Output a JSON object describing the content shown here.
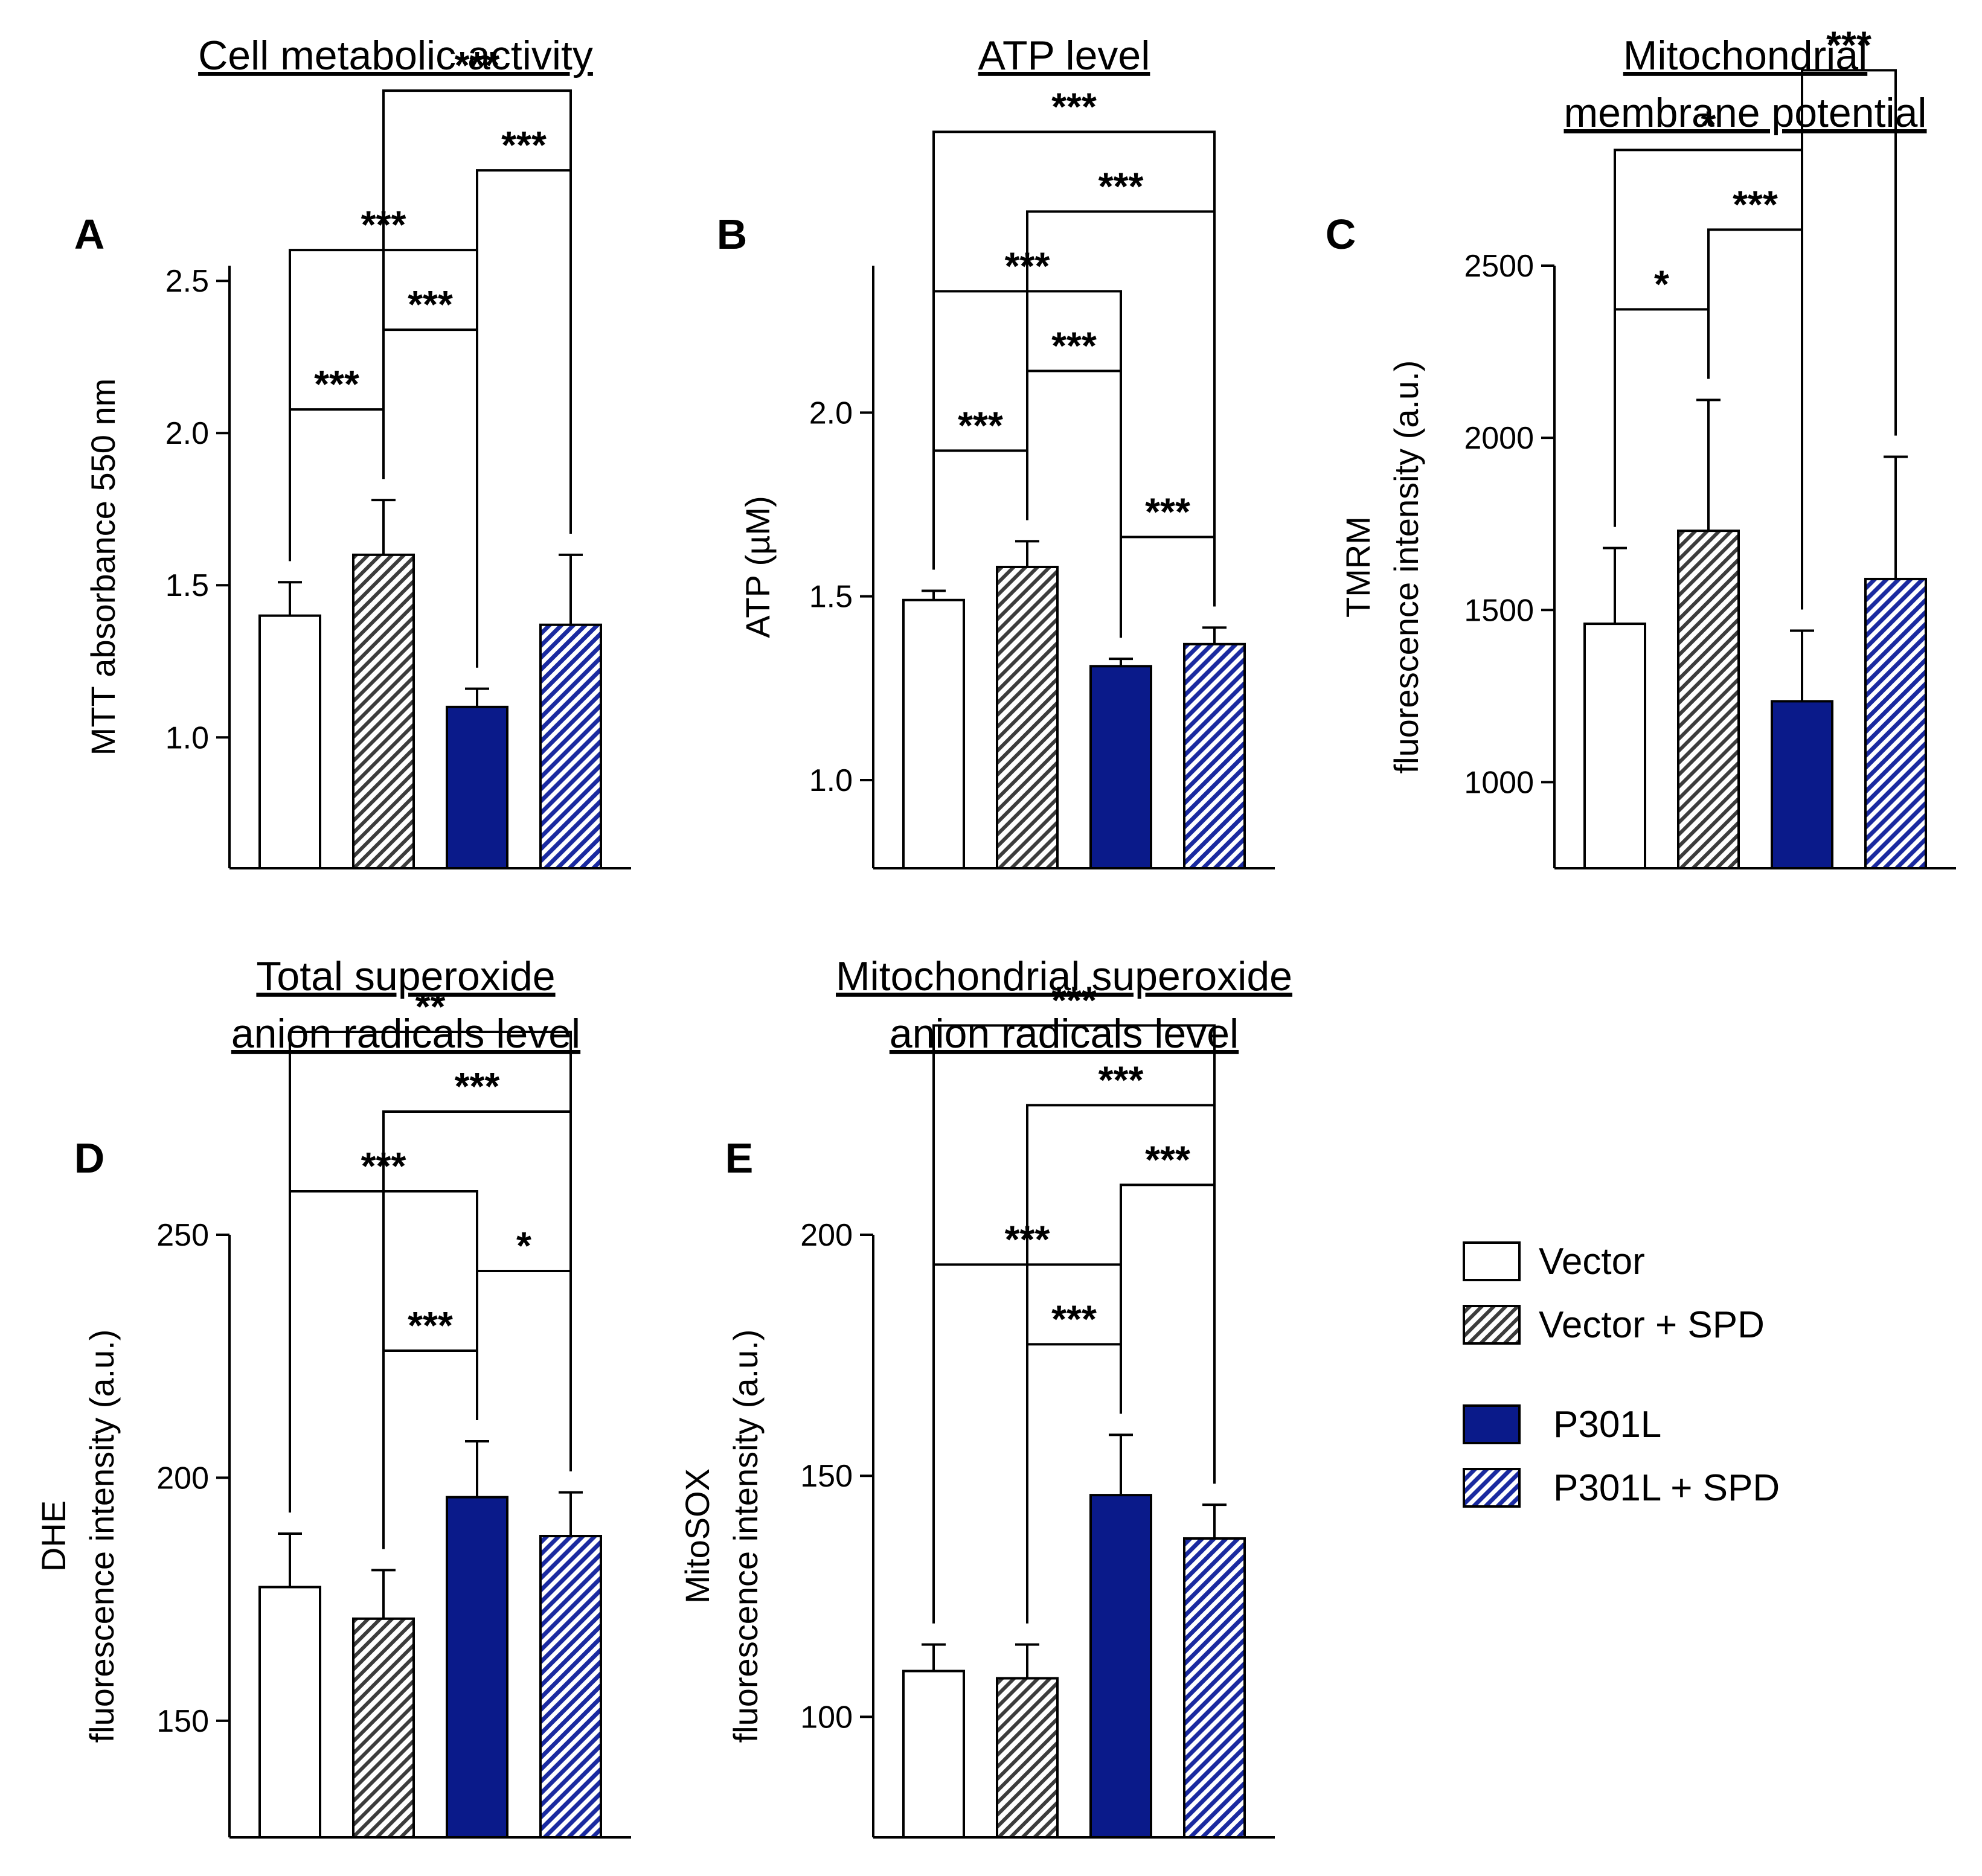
{
  "colors": {
    "vector": "#ffffff",
    "vector_spd": "#c8c8c8",
    "p301l": "#0a1a8a",
    "p301l_spd": "#3a4ab8",
    "ink": "#000000"
  },
  "legend": {
    "items": [
      {
        "label": "Vector",
        "style": "vector"
      },
      {
        "label": "Vector + SPD",
        "style": "vector_spd"
      },
      {
        "label": "P301L",
        "style": "p301l"
      },
      {
        "label": "P301L + SPD",
        "style": "p301l_spd"
      }
    ]
  },
  "chart_data": [
    {
      "type": "bar",
      "panel": "A",
      "title": [
        "Cell metabolic activity"
      ],
      "ylabel": [
        "MTT absorbance 550 nm"
      ],
      "categories": [
        "Vector",
        "Vector + SPD",
        "P301L",
        "P301L + SPD"
      ],
      "values": [
        1.4,
        1.6,
        1.1,
        1.37
      ],
      "errors": [
        0.11,
        0.18,
        0.06,
        0.23
      ],
      "ylim": [
        0.57,
        2.55
      ],
      "ticks": [
        1.0,
        1.5,
        2.0,
        2.5
      ],
      "tick_labels": [
        "1.0",
        "1.5",
        "2.0",
        "2.5"
      ],
      "significance": [
        {
          "a": 0,
          "b": 1,
          "label": "***"
        },
        {
          "a": 1,
          "b": 2,
          "label": "***"
        },
        {
          "a": 0,
          "b": 2,
          "label": "***"
        },
        {
          "a": 2,
          "b": 3,
          "label": "***"
        },
        {
          "a": 1,
          "b": 3,
          "label": "***"
        }
      ]
    },
    {
      "type": "bar",
      "panel": "B",
      "title": [
        "ATP level"
      ],
      "ylabel": [
        "ATP (µM)"
      ],
      "categories": [
        "Vector",
        "Vector + SPD",
        "P301L",
        "P301L + SPD"
      ],
      "values": [
        1.49,
        1.58,
        1.31,
        1.37
      ],
      "errors": [
        0.025,
        0.07,
        0.02,
        0.045
      ],
      "ylim": [
        0.76,
        2.4
      ],
      "ticks": [
        1.0,
        1.5,
        2.0
      ],
      "tick_labels": [
        "1.0",
        "1.5",
        "2.0"
      ],
      "significance": [
        {
          "a": 0,
          "b": 1,
          "label": "***"
        },
        {
          "a": 2,
          "b": 3,
          "label": "***"
        },
        {
          "a": 1,
          "b": 2,
          "label": "***"
        },
        {
          "a": 0,
          "b": 2,
          "label": "***"
        },
        {
          "a": 1,
          "b": 3,
          "label": "***"
        },
        {
          "a": 0,
          "b": 3,
          "label": "***"
        }
      ]
    },
    {
      "type": "bar",
      "panel": "C",
      "title": [
        "Mitochondrial",
        "membrane potential"
      ],
      "ylabel": [
        "TMRM",
        "fluorescence intensity (a.u.)"
      ],
      "categories": [
        "Vector",
        "Vector + SPD",
        "P301L",
        "P301L + SPD"
      ],
      "values": [
        1460,
        1730,
        1235,
        1590
      ],
      "errors": [
        220,
        380,
        205,
        355
      ],
      "ylim": [
        750,
        2500
      ],
      "ticks": [
        1000,
        1500,
        2000,
        2500
      ],
      "tick_labels": [
        "1000",
        "1500",
        "2000",
        "2500"
      ],
      "significance": [
        {
          "a": 0,
          "b": 1,
          "label": "*"
        },
        {
          "a": 1,
          "b": 2,
          "label": "***"
        },
        {
          "a": 0,
          "b": 2,
          "label": "*"
        },
        {
          "a": 2,
          "b": 3,
          "label": "***"
        }
      ]
    },
    {
      "type": "bar",
      "panel": "D",
      "title": [
        "Total superoxide",
        "anion radicals level"
      ],
      "ylabel": [
        "DHE",
        "fluorescence intensity (a.u.)"
      ],
      "categories": [
        "Vector",
        "Vector + SPD",
        "P301L",
        "P301L + SPD"
      ],
      "values": [
        177.5,
        171,
        196,
        188
      ],
      "errors": [
        11,
        10,
        11.5,
        9
      ],
      "ylim": [
        126,
        250
      ],
      "ticks": [
        150,
        200,
        250
      ],
      "tick_labels": [
        "150",
        "200",
        "250"
      ],
      "significance": [
        {
          "a": 1,
          "b": 2,
          "label": "***"
        },
        {
          "a": 2,
          "b": 3,
          "label": "*"
        },
        {
          "a": 0,
          "b": 2,
          "label": "***"
        },
        {
          "a": 1,
          "b": 3,
          "label": "***"
        },
        {
          "a": 0,
          "b": 3,
          "label": "**"
        }
      ]
    },
    {
      "type": "bar",
      "panel": "E",
      "title": [
        "Mitochondrial superoxide",
        "anion radicals level"
      ],
      "ylabel": [
        "MitoSOX",
        "fluorescence intensity (a.u.)"
      ],
      "categories": [
        "Vector",
        "Vector + SPD",
        "P301L",
        "P301L + SPD"
      ],
      "values": [
        109.5,
        108,
        146,
        137
      ],
      "errors": [
        5.5,
        7,
        12.5,
        7
      ],
      "ylim": [
        75,
        200
      ],
      "ticks": [
        100,
        150,
        200
      ],
      "tick_labels": [
        "100",
        "150",
        "200"
      ],
      "significance": [
        {
          "a": 1,
          "b": 2,
          "label": "***"
        },
        {
          "a": 0,
          "b": 2,
          "label": "***"
        },
        {
          "a": 2,
          "b": 3,
          "label": "***"
        },
        {
          "a": 1,
          "b": 3,
          "label": "***"
        },
        {
          "a": 0,
          "b": 3,
          "label": "***"
        }
      ]
    }
  ]
}
